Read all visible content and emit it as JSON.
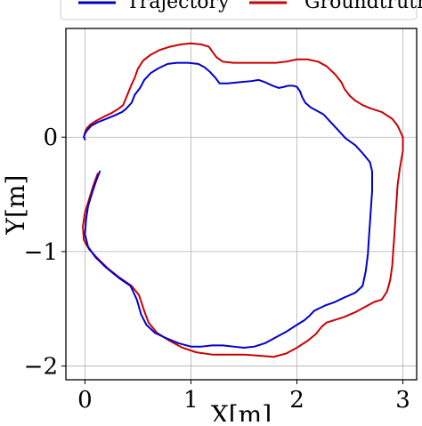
{
  "chart_data": {
    "type": "line",
    "xlabel": "X[m]",
    "ylabel": "Y[m]",
    "xlim": [
      -0.18,
      3.13
    ],
    "ylim": [
      -2.12,
      0.95
    ],
    "xticks": [
      0,
      1,
      2,
      3
    ],
    "yticks": [
      0,
      -1,
      -2
    ],
    "xtick_labels": [
      "0",
      "1",
      "2",
      "3"
    ],
    "ytick_labels": [
      "0",
      "−1",
      "−2"
    ],
    "grid": true,
    "legend_position": "top",
    "series": [
      {
        "name": "Trajectory",
        "color": "#0000cc",
        "points": [
          [
            0.14,
            -0.3
          ],
          [
            0.11,
            -0.37
          ],
          [
            0.07,
            -0.48
          ],
          [
            0.03,
            -0.6
          ],
          [
            0.01,
            -0.72
          ],
          [
            0.0,
            -0.85
          ],
          [
            0.03,
            -0.96
          ],
          [
            0.1,
            -1.05
          ],
          [
            0.2,
            -1.14
          ],
          [
            0.32,
            -1.23
          ],
          [
            0.43,
            -1.3
          ],
          [
            0.49,
            -1.42
          ],
          [
            0.53,
            -1.55
          ],
          [
            0.58,
            -1.64
          ],
          [
            0.66,
            -1.71
          ],
          [
            0.75,
            -1.75
          ],
          [
            0.88,
            -1.8
          ],
          [
            1.0,
            -1.83
          ],
          [
            1.1,
            -1.83
          ],
          [
            1.2,
            -1.82
          ],
          [
            1.3,
            -1.82
          ],
          [
            1.4,
            -1.83
          ],
          [
            1.5,
            -1.84
          ],
          [
            1.6,
            -1.83
          ],
          [
            1.7,
            -1.8
          ],
          [
            1.8,
            -1.75
          ],
          [
            1.9,
            -1.7
          ],
          [
            2.0,
            -1.64
          ],
          [
            2.07,
            -1.6
          ],
          [
            2.12,
            -1.56
          ],
          [
            2.16,
            -1.52
          ],
          [
            2.2,
            -1.5
          ],
          [
            2.27,
            -1.47
          ],
          [
            2.36,
            -1.44
          ],
          [
            2.45,
            -1.4
          ],
          [
            2.55,
            -1.36
          ],
          [
            2.62,
            -1.3
          ],
          [
            2.65,
            -1.17
          ],
          [
            2.67,
            -1.02
          ],
          [
            2.68,
            -0.87
          ],
          [
            2.69,
            -0.74
          ],
          [
            2.7,
            -0.6
          ],
          [
            2.71,
            -0.47
          ],
          [
            2.71,
            -0.3
          ],
          [
            2.69,
            -0.22
          ],
          [
            2.62,
            -0.14
          ],
          [
            2.55,
            -0.07
          ],
          [
            2.46,
            -0.01
          ],
          [
            2.38,
            0.07
          ],
          [
            2.31,
            0.14
          ],
          [
            2.25,
            0.2
          ],
          [
            2.17,
            0.24
          ],
          [
            2.13,
            0.26
          ],
          [
            2.08,
            0.3
          ],
          [
            2.05,
            0.35
          ],
          [
            2.03,
            0.4
          ],
          [
            2.0,
            0.44
          ],
          [
            1.96,
            0.45
          ],
          [
            1.92,
            0.45
          ],
          [
            1.88,
            0.44
          ],
          [
            1.83,
            0.43
          ],
          [
            1.77,
            0.45
          ],
          [
            1.7,
            0.48
          ],
          [
            1.64,
            0.5
          ],
          [
            1.57,
            0.49
          ],
          [
            1.45,
            0.48
          ],
          [
            1.35,
            0.47
          ],
          [
            1.27,
            0.47
          ],
          [
            1.23,
            0.52
          ],
          [
            1.18,
            0.57
          ],
          [
            1.13,
            0.61
          ],
          [
            1.07,
            0.64
          ],
          [
            0.97,
            0.65
          ],
          [
            0.87,
            0.65
          ],
          [
            0.78,
            0.64
          ],
          [
            0.69,
            0.6
          ],
          [
            0.62,
            0.56
          ],
          [
            0.56,
            0.5
          ],
          [
            0.52,
            0.43
          ],
          [
            0.47,
            0.37
          ],
          [
            0.44,
            0.3
          ],
          [
            0.39,
            0.25
          ],
          [
            0.35,
            0.22
          ],
          [
            0.28,
            0.19
          ],
          [
            0.2,
            0.16
          ],
          [
            0.12,
            0.13
          ],
          [
            0.06,
            0.1
          ],
          [
            0.02,
            0.06
          ],
          [
            0.0,
            0.03
          ],
          [
            -0.01,
            0.0
          ],
          [
            0.0,
            -0.02
          ]
        ]
      },
      {
        "name": "Groundtruth",
        "color": "#cc0000",
        "points": [
          [
            0.12,
            -0.32
          ],
          [
            0.08,
            -0.42
          ],
          [
            0.04,
            -0.54
          ],
          [
            0.0,
            -0.66
          ],
          [
            -0.02,
            -0.78
          ],
          [
            -0.01,
            -0.9
          ],
          [
            0.04,
            -0.98
          ],
          [
            0.12,
            -1.06
          ],
          [
            0.22,
            -1.15
          ],
          [
            0.33,
            -1.23
          ],
          [
            0.44,
            -1.3
          ],
          [
            0.51,
            -1.38
          ],
          [
            0.56,
            -1.52
          ],
          [
            0.6,
            -1.62
          ],
          [
            0.68,
            -1.71
          ],
          [
            0.8,
            -1.78
          ],
          [
            0.92,
            -1.84
          ],
          [
            1.05,
            -1.88
          ],
          [
            1.2,
            -1.9
          ],
          [
            1.35,
            -1.9
          ],
          [
            1.5,
            -1.9
          ],
          [
            1.65,
            -1.91
          ],
          [
            1.78,
            -1.92
          ],
          [
            1.9,
            -1.89
          ],
          [
            2.0,
            -1.84
          ],
          [
            2.1,
            -1.78
          ],
          [
            2.18,
            -1.72
          ],
          [
            2.23,
            -1.66
          ],
          [
            2.28,
            -1.62
          ],
          [
            2.35,
            -1.6
          ],
          [
            2.45,
            -1.57
          ],
          [
            2.55,
            -1.53
          ],
          [
            2.65,
            -1.48
          ],
          [
            2.73,
            -1.44
          ],
          [
            2.8,
            -1.42
          ],
          [
            2.85,
            -1.35
          ],
          [
            2.88,
            -1.25
          ],
          [
            2.9,
            -1.12
          ],
          [
            2.91,
            -0.98
          ],
          [
            2.92,
            -0.85
          ],
          [
            2.93,
            -0.7
          ],
          [
            2.94,
            -0.56
          ],
          [
            2.95,
            -0.42
          ],
          [
            2.97,
            -0.28
          ],
          [
            3.0,
            -0.12
          ],
          [
            3.0,
            0.0
          ],
          [
            2.95,
            0.1
          ],
          [
            2.9,
            0.16
          ],
          [
            2.8,
            0.22
          ],
          [
            2.7,
            0.25
          ],
          [
            2.62,
            0.28
          ],
          [
            2.55,
            0.32
          ],
          [
            2.5,
            0.36
          ],
          [
            2.45,
            0.42
          ],
          [
            2.42,
            0.48
          ],
          [
            2.36,
            0.55
          ],
          [
            2.28,
            0.62
          ],
          [
            2.2,
            0.66
          ],
          [
            2.1,
            0.68
          ],
          [
            2.0,
            0.68
          ],
          [
            1.9,
            0.66
          ],
          [
            1.8,
            0.65
          ],
          [
            1.7,
            0.65
          ],
          [
            1.6,
            0.65
          ],
          [
            1.5,
            0.65
          ],
          [
            1.4,
            0.65
          ],
          [
            1.3,
            0.66
          ],
          [
            1.24,
            0.7
          ],
          [
            1.2,
            0.75
          ],
          [
            1.17,
            0.79
          ],
          [
            1.1,
            0.81
          ],
          [
            1.0,
            0.82
          ],
          [
            0.9,
            0.81
          ],
          [
            0.8,
            0.79
          ],
          [
            0.7,
            0.76
          ],
          [
            0.62,
            0.72
          ],
          [
            0.55,
            0.67
          ],
          [
            0.5,
            0.6
          ],
          [
            0.47,
            0.52
          ],
          [
            0.44,
            0.46
          ],
          [
            0.4,
            0.37
          ],
          [
            0.36,
            0.28
          ],
          [
            0.32,
            0.25
          ],
          [
            0.25,
            0.21
          ],
          [
            0.18,
            0.18
          ],
          [
            0.1,
            0.14
          ],
          [
            0.05,
            0.11
          ],
          [
            0.02,
            0.08
          ],
          [
            0.0,
            0.04
          ],
          [
            -0.01,
            0.0
          ]
        ]
      }
    ]
  }
}
